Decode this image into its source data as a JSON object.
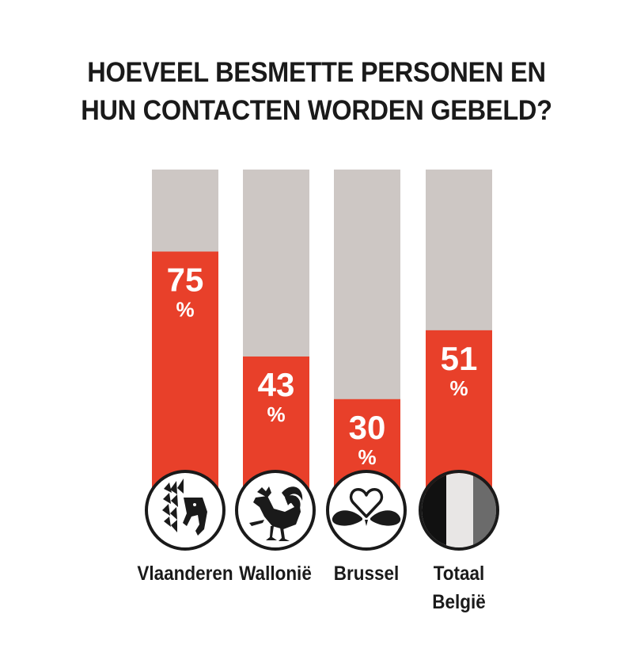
{
  "title_lines": [
    "HOEVEEL BESMETTE PERSONEN EN",
    "HUN CONTACTEN WORDEN GEBELD?"
  ],
  "colors": {
    "bar_fill": "#e8402a",
    "bar_track": "#cdc7c4",
    "text": "#1a1a1a"
  },
  "chart_data": {
    "type": "bar",
    "stacked_to_100": true,
    "title": "HOEVEEL BESMETTE PERSONEN EN HUN CONTACTEN WORDEN GEBELD?",
    "categories": [
      "Vlaanderen",
      "Wallonië",
      "Brussel",
      "Totaal België"
    ],
    "category_label_lines": [
      [
        "Vlaanderen"
      ],
      [
        "Wallonië"
      ],
      [
        "Brussel"
      ],
      [
        "Totaal",
        "België"
      ]
    ],
    "icons": [
      "flemish-lion-icon",
      "walloon-rooster-icon",
      "brussels-iris-icon",
      "belgian-flag-icon"
    ],
    "values": [
      75,
      43,
      30,
      51
    ],
    "value_labels": [
      "75",
      "43",
      "30",
      "51"
    ],
    "unit": "%",
    "ylim": [
      0,
      100
    ],
    "grid": false,
    "legend": "none"
  }
}
